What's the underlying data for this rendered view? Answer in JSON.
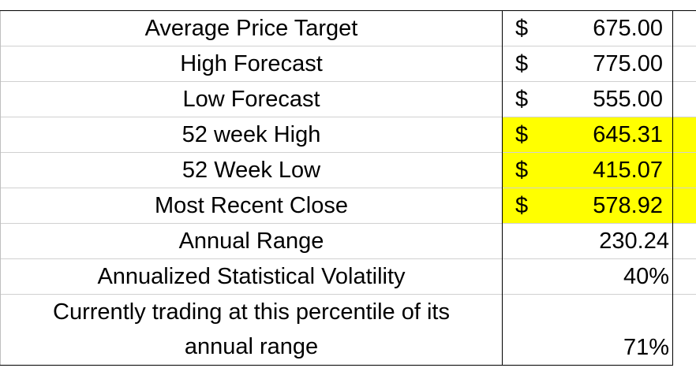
{
  "colors": {
    "highlight": "#ffff00",
    "border": "#000000",
    "gridline": "#d0d0d0"
  },
  "rows": [
    {
      "label": "Average Price Target",
      "currency": "$",
      "value": "675.00"
    },
    {
      "label": "High Forecast",
      "currency": "$",
      "value": "775.00"
    },
    {
      "label": "Low Forecast",
      "currency": "$",
      "value": "555.00"
    },
    {
      "label": "52 week High",
      "currency": "$",
      "value": "645.31"
    },
    {
      "label": "52 Week Low",
      "currency": "$",
      "value": "415.07"
    },
    {
      "label": "Most Recent Close",
      "currency": "$",
      "value": "578.92"
    },
    {
      "label": "Annual Range",
      "value": "230.24"
    },
    {
      "label": "Annualized Statistical Volatility",
      "value": "40%"
    },
    {
      "label_line1": "Currently trading at this percentile of its",
      "label_line2": "annual range",
      "value": "71%"
    }
  ]
}
